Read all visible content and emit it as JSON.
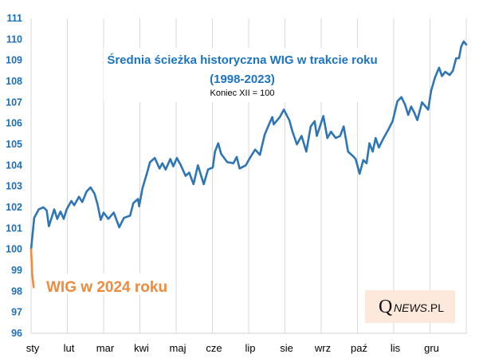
{
  "chart_data": {
    "type": "line",
    "title": "Średnia ścieżka historyczna WIG w trakcie roku",
    "title_line2": "(1998-2023)",
    "subtitle": "Koniec XII = 100",
    "xlabel": "",
    "ylabel": "",
    "ylim": [
      96,
      111
    ],
    "yticks": [
      "96",
      "97",
      "98",
      "99",
      "100",
      "101",
      "102",
      "103",
      "104",
      "105",
      "106",
      "107",
      "108",
      "109",
      "110",
      "111"
    ],
    "xlim": [
      0,
      12
    ],
    "xticks": [
      "sty",
      "lut",
      "mar",
      "kwi",
      "maj",
      "cze",
      "lip",
      "sie",
      "wrz",
      "paź",
      "lis",
      "gru"
    ],
    "grid": "vertical",
    "annotation": "WIG w 2024 roku",
    "watermark": "QNEWS.PL",
    "series": [
      {
        "name": "Średnia ścieżka historyczna WIG (1998-2023)",
        "color": "#2e75b6",
        "x": [
          0,
          0.085,
          0.21,
          0.34,
          0.43,
          0.49,
          0.64,
          0.72,
          0.81,
          0.9,
          0.98,
          1.11,
          1.19,
          1.32,
          1.41,
          1.53,
          1.64,
          1.75,
          1.83,
          1.92,
          2.0,
          2.13,
          2.28,
          2.43,
          2.56,
          2.73,
          2.82,
          2.95,
          2.98,
          3.07,
          3.2,
          3.28,
          3.41,
          3.54,
          3.62,
          3.71,
          3.84,
          3.92,
          4.02,
          4.13,
          4.26,
          4.36,
          4.48,
          4.6,
          4.76,
          4.88,
          5.01,
          5.07,
          5.16,
          5.24,
          5.41,
          5.58,
          5.67,
          5.75,
          5.92,
          6.05,
          6.18,
          6.31,
          6.44,
          6.56,
          6.65,
          6.69,
          6.86,
          6.97,
          7.12,
          7.2,
          7.33,
          7.46,
          7.59,
          7.71,
          7.82,
          7.88,
          8.06,
          8.17,
          8.27,
          8.4,
          8.52,
          8.62,
          8.74,
          8.87,
          8.95,
          9.06,
          9.16,
          9.25,
          9.33,
          9.42,
          9.5,
          9.59,
          9.72,
          9.85,
          9.97,
          10.1,
          10.21,
          10.31,
          10.4,
          10.48,
          10.57,
          10.65,
          10.78,
          10.95,
          11.03,
          11.14,
          11.25,
          11.33,
          11.42,
          11.54,
          11.63,
          11.72,
          11.8,
          11.86,
          11.93,
          12
        ],
        "y": [
          100,
          101.5,
          101.9,
          102.0,
          101.85,
          101.1,
          101.9,
          101.45,
          101.8,
          101.45,
          101.9,
          102.3,
          102.1,
          102.5,
          102.25,
          102.75,
          102.95,
          102.65,
          102.15,
          101.4,
          101.75,
          101.45,
          101.75,
          101.05,
          101.5,
          101.6,
          102.2,
          102.4,
          102.05,
          102.9,
          103.65,
          104.15,
          104.35,
          103.85,
          104.1,
          103.8,
          104.3,
          103.95,
          104.35,
          104.0,
          103.5,
          103.65,
          103.1,
          104.0,
          103.1,
          103.8,
          103.9,
          104.65,
          105.05,
          104.55,
          104.15,
          104.1,
          104.4,
          103.85,
          104.0,
          104.4,
          104.75,
          104.5,
          105.45,
          105.95,
          106.3,
          105.95,
          106.3,
          106.65,
          106.15,
          105.65,
          105.0,
          105.4,
          104.65,
          105.85,
          106.1,
          105.4,
          106.35,
          105.3,
          105.6,
          105.3,
          105.4,
          105.85,
          104.65,
          104.45,
          104.3,
          103.6,
          104.25,
          104.1,
          105.05,
          104.65,
          105.3,
          104.85,
          105.3,
          105.7,
          106.1,
          107.05,
          107.25,
          106.9,
          106.4,
          106.8,
          106.5,
          106.15,
          107.0,
          106.65,
          107.55,
          108.2,
          108.65,
          108.25,
          108.45,
          108.3,
          108.5,
          109.1,
          109.1,
          109.65,
          109.9,
          109.75
        ]
      },
      {
        "name": "WIG w 2024 roku",
        "color": "#f08a3c",
        "x": [
          0,
          0.03,
          0.07
        ],
        "y": [
          100,
          98.8,
          98.2
        ]
      }
    ]
  }
}
